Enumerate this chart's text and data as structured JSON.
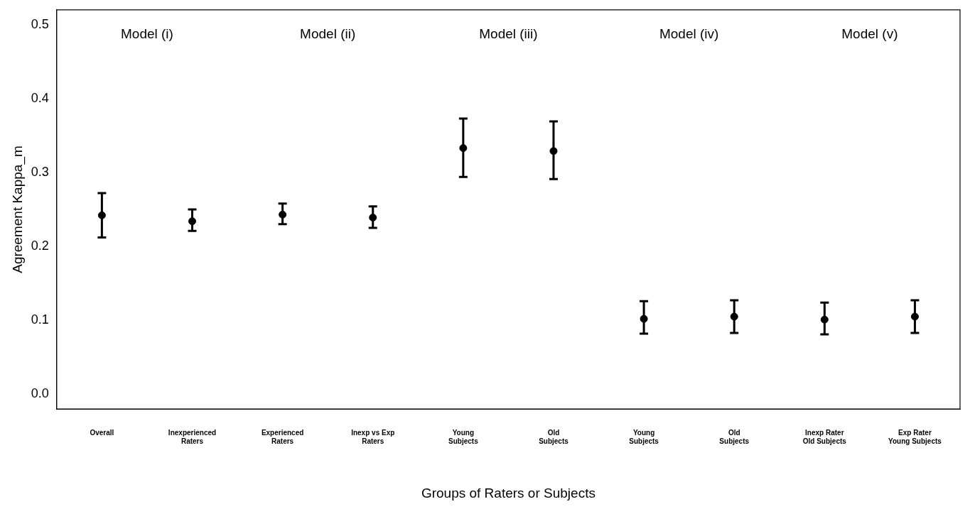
{
  "chart_data": {
    "type": "scatter",
    "xlabel": "Groups of Raters or Subjects",
    "ylabel": "Agreement Kappa_m",
    "categories": [
      "Overall",
      "Inexperienced\nRaters",
      "Experienced\nRaters",
      "Inexp vs Exp\nRaters",
      "Young\nSubjects",
      "Old\nSubjects",
      "Young\nSubjects",
      "Old\nSubjects",
      "Inexp Rater\nOld Subjects",
      "Exp Rater\nYoung Subjects"
    ],
    "series": [
      {
        "color": "#000000",
        "values": [
          0.242,
          0.234,
          0.243,
          0.239,
          0.333,
          0.329,
          0.102,
          0.105,
          0.101,
          0.105
        ],
        "errors": [
          [
            0.212,
            0.272
          ],
          [
            0.221,
            0.25
          ],
          [
            0.23,
            0.258
          ],
          [
            0.225,
            0.254
          ],
          [
            0.294,
            0.373
          ],
          [
            0.291,
            0.369
          ],
          [
            0.082,
            0.126
          ],
          [
            0.083,
            0.127
          ],
          [
            0.081,
            0.124
          ],
          [
            0.083,
            0.127
          ]
        ]
      }
    ],
    "ylim": [
      -0.02,
      0.52
    ],
    "yticks": [
      {
        "value": 0,
        "label": "0.0"
      },
      0.1,
      0.2,
      0.3,
      0.4,
      0.5
    ],
    "annotations": [
      "Model (i)",
      "Model (ii)",
      "Model (iii)",
      "Model (iv)",
      "Model (v)"
    ],
    "marker": "circle",
    "grid": false,
    "legend": false
  }
}
